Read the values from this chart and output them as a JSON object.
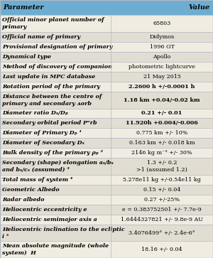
{
  "title_param": "Parameter",
  "title_value": "Value",
  "header_bg": "#6dadd1",
  "row_bg_odd": "#f0ece2",
  "row_bg_even": "#e2ddd3",
  "border_color": "#b0b8c0",
  "col_split": 0.52,
  "rows": [
    {
      "param": "Official minor planet number of\nprimary",
      "value": "65803",
      "bold_value": false,
      "ht": 2
    },
    {
      "param": "Official name of primary",
      "value": "Didymos",
      "bold_value": false,
      "ht": 1
    },
    {
      "param": "Provisional designation of primary",
      "value": "1996 GT",
      "bold_value": false,
      "ht": 1
    },
    {
      "param": "Dynamical type",
      "value": "Apollo",
      "bold_value": false,
      "ht": 1
    },
    {
      "param": "Method of discovery of companion",
      "value": "photometric lightcurve",
      "bold_value": false,
      "ht": 1
    },
    {
      "param": "Last update in MPC database",
      "value": "21 May 2015",
      "bold_value": false,
      "ht": 1
    },
    {
      "param": "Rotation period of the primary",
      "value": "2.2600 h +/-0.0001 h",
      "bold_value": true,
      "ht": 1
    },
    {
      "param": "Distance between the centre of\nprimary and secondary ᴀorb",
      "value": "1.18 km +0.04/-0.02 km",
      "bold_value": true,
      "ht": 2
    },
    {
      "param": "Diameter ratio Dₛ/Dₚ",
      "value": "0.21 +/- 0.01",
      "bold_value": true,
      "ht": 1
    },
    {
      "param": "Secondary orbital period Pᵒrb",
      "value": "11.920h +0.004/-0.006",
      "bold_value": true,
      "ht": 1
    },
    {
      "param": "Diameter of Primary Dₚ ¹",
      "value": "0.775 km +/- 10%",
      "bold_value": false,
      "ht": 1
    },
    {
      "param": "Diameter of Secondary Dₛ",
      "value": "0.163 km +/- 0.018 km",
      "bold_value": false,
      "ht": 1
    },
    {
      "param": "Bulk density of the primary ρₚ ²",
      "value": "2146 kg m⁻³ +/- 30%",
      "bold_value": false,
      "ht": 1
    },
    {
      "param": "Secondary (shape) elongation aₛ/bₛ\nand bₛ/cₛ (assumed) ³",
      "value": "1.3 +/- 0.2\n>1 (assumed 1.2)",
      "bold_value": false,
      "ht": 2
    },
    {
      "param": "Total mass of system ⁴",
      "value": "5.278e11 kg +/-0.54e11 kg",
      "bold_value": false,
      "ht": 1
    },
    {
      "param": "Geometric Albedo",
      "value": "0.15 +/- 0.04",
      "bold_value": false,
      "ht": 1
    },
    {
      "param": "Radar albedo",
      "value": "0.27 +/-25%",
      "bold_value": false,
      "ht": 1
    },
    {
      "param": "Heliocentric eccentricity e",
      "value": "e = 0.383752501 +/- 7.7e-9",
      "bold_value": false,
      "ht": 1
    },
    {
      "param": "Heliocentric semimajor axis a",
      "value": "1.6444327821 +/- 9.8e-9 AU",
      "bold_value": false,
      "ht": 1
    },
    {
      "param": "Heliocentric inclination to the ecliptic\ni ⁵",
      "value": "3.4076499° +/- 2.4e-6°",
      "bold_value": false,
      "ht": 2
    },
    {
      "param": "Mean absolute magnitude (whole\nsystem)  H",
      "value": "18.16 +/- 0.04",
      "bold_value": false,
      "ht": 2
    }
  ]
}
